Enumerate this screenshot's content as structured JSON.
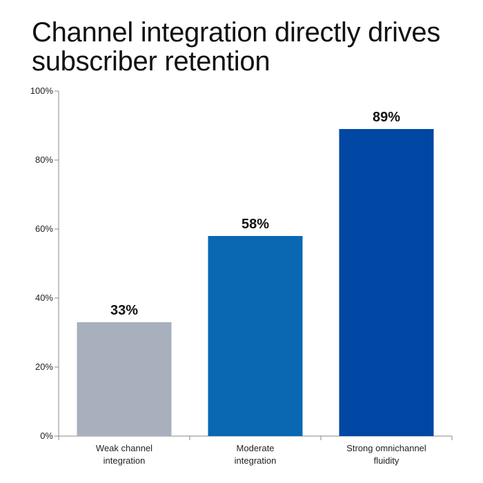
{
  "title_lines": [
    "Channel integration directly drives",
    "subscriber retention"
  ],
  "chart_data": {
    "type": "bar",
    "title": "Channel integration directly drives subscriber retention",
    "categories": [
      [
        "Weak channel",
        "integration"
      ],
      [
        "Moderate",
        "integration"
      ],
      [
        "Strong omnichannel",
        "fluidity"
      ]
    ],
    "values": [
      33,
      58,
      89
    ],
    "value_labels": [
      "33%",
      "58%",
      "89%"
    ],
    "colors": [
      "#a8afbd",
      "#0a68b3",
      "#0047a4"
    ],
    "ylim": [
      0,
      100
    ],
    "yticks": [
      0,
      20,
      40,
      60,
      80,
      100
    ],
    "ytick_labels": [
      "0%",
      "20%",
      "40%",
      "60%",
      "80%",
      "100%"
    ],
    "grid": false,
    "xlabel": "",
    "ylabel": ""
  }
}
